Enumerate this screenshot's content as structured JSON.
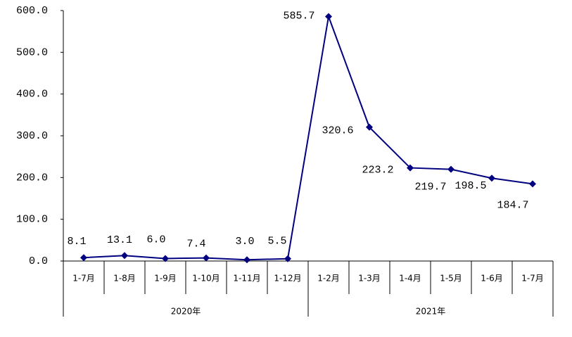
{
  "chart_data": {
    "type": "line",
    "groups": [
      {
        "label": "2020年",
        "categories": [
          "1-7月",
          "1-8月",
          "1-9月",
          "1-10月",
          "1-11月",
          "1-12月"
        ]
      },
      {
        "label": "2021年",
        "categories": [
          "1-2月",
          "1-3月",
          "1-4月",
          "1-5月",
          "1-6月",
          "1-7月"
        ]
      }
    ],
    "series": [
      {
        "color": "#000080",
        "values": [
          8.1,
          13.1,
          6.0,
          7.4,
          3.0,
          5.5,
          585.7,
          320.6,
          223.2,
          219.7,
          198.5,
          184.7
        ],
        "value_labels": [
          "8.1",
          "13.1",
          "6.0",
          "7.4",
          "3.0",
          "5.5",
          "585.7",
          "320.6",
          "223.2",
          "219.7",
          "198.5",
          "184.7"
        ]
      }
    ],
    "ylim": [
      0,
      600
    ],
    "yticks": [
      {
        "value": 0,
        "label": "0.0"
      },
      {
        "value": 100,
        "label": "100.0"
      },
      {
        "value": 200,
        "label": "200.0"
      },
      {
        "value": 300,
        "label": "300.0"
      },
      {
        "value": 400,
        "label": "400.0"
      },
      {
        "value": 500,
        "label": "500.0"
      },
      {
        "value": 600,
        "label": "600.0"
      }
    ]
  }
}
